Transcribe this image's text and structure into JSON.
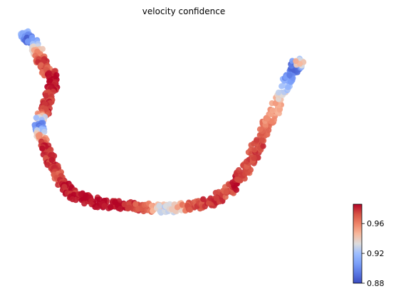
{
  "chart_data": {
    "type": "scatter",
    "title": "velocity confidence",
    "xlabel": "",
    "ylabel": "",
    "axes_visible": false,
    "grid": false,
    "colormap": "coolwarm",
    "colorbar": {
      "min": 0.88,
      "max": 0.986,
      "ticks": [
        {
          "value": 0.88,
          "label": "0.88"
        },
        {
          "value": 0.92,
          "label": "0.92"
        },
        {
          "value": 0.96,
          "label": "0.96"
        }
      ],
      "placement": "bottom-right"
    },
    "xlim": [
      0,
      100
    ],
    "ylim": [
      0,
      100
    ],
    "trajectory": [
      {
        "x": 0,
        "y": 100,
        "c": 0.92
      },
      {
        "x": 2,
        "y": 97,
        "c": 0.89
      },
      {
        "x": 4,
        "y": 94,
        "c": 0.93
      },
      {
        "x": 5,
        "y": 91,
        "c": 0.95
      },
      {
        "x": 6,
        "y": 87,
        "c": 0.98
      },
      {
        "x": 7.5,
        "y": 84,
        "c": 0.965
      },
      {
        "x": 9.5,
        "y": 81,
        "c": 0.985
      },
      {
        "x": 9,
        "y": 77,
        "c": 0.985
      },
      {
        "x": 8,
        "y": 72,
        "c": 0.975
      },
      {
        "x": 6.5,
        "y": 67,
        "c": 0.98
      },
      {
        "x": 5.5,
        "y": 63,
        "c": 0.93
      },
      {
        "x": 5,
        "y": 59,
        "c": 0.89
      },
      {
        "x": 6,
        "y": 55,
        "c": 0.955
      },
      {
        "x": 7,
        "y": 51,
        "c": 0.985
      },
      {
        "x": 8,
        "y": 47,
        "c": 0.975
      },
      {
        "x": 9.5,
        "y": 43,
        "c": 0.98
      },
      {
        "x": 11,
        "y": 38,
        "c": 0.97
      },
      {
        "x": 13,
        "y": 34,
        "c": 0.985
      },
      {
        "x": 16,
        "y": 31,
        "c": 0.98
      },
      {
        "x": 20,
        "y": 29,
        "c": 0.985
      },
      {
        "x": 25,
        "y": 27,
        "c": 0.985
      },
      {
        "x": 30,
        "y": 26.5,
        "c": 0.985
      },
      {
        "x": 35,
        "y": 26,
        "c": 0.975
      },
      {
        "x": 40,
        "y": 25.5,
        "c": 0.965
      },
      {
        "x": 44,
        "y": 25,
        "c": 0.925
      },
      {
        "x": 48,
        "y": 25.5,
        "c": 0.94
      },
      {
        "x": 52,
        "y": 26,
        "c": 0.97
      },
      {
        "x": 56,
        "y": 27,
        "c": 0.975
      },
      {
        "x": 60,
        "y": 29,
        "c": 0.98
      },
      {
        "x": 63,
        "y": 32,
        "c": 0.97
      },
      {
        "x": 66,
        "y": 36,
        "c": 0.985
      },
      {
        "x": 68.5,
        "y": 41,
        "c": 0.97
      },
      {
        "x": 71,
        "y": 47,
        "c": 0.975
      },
      {
        "x": 73,
        "y": 53,
        "c": 0.975
      },
      {
        "x": 75,
        "y": 59,
        "c": 0.965
      },
      {
        "x": 77,
        "y": 65,
        "c": 0.955
      },
      {
        "x": 79,
        "y": 71,
        "c": 0.95
      },
      {
        "x": 81,
        "y": 77,
        "c": 0.92
      },
      {
        "x": 82.5,
        "y": 82,
        "c": 0.9
      },
      {
        "x": 84,
        "y": 86,
        "c": 0.885
      },
      {
        "x": 86,
        "y": 88,
        "c": 0.95
      }
    ]
  }
}
